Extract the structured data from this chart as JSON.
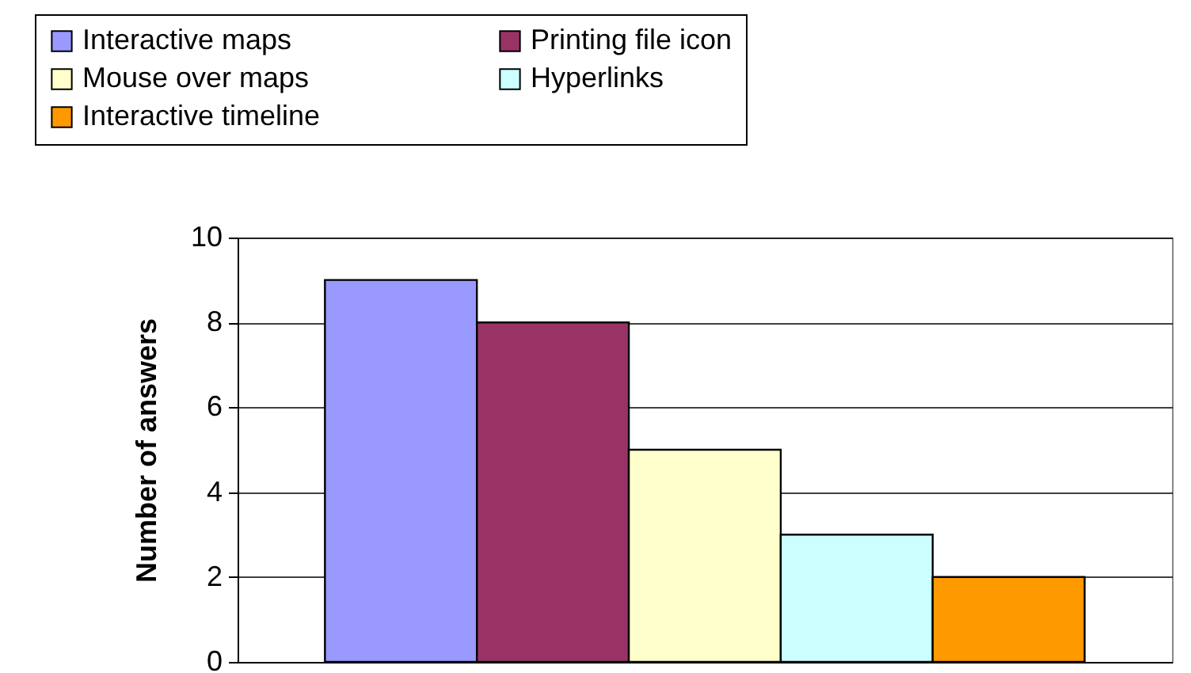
{
  "chart_data": {
    "type": "bar",
    "ylabel": "Number of answers",
    "categories": [
      null
    ],
    "series": [
      {
        "name": "Interactive maps",
        "color": "#9999ff",
        "values": [
          9
        ]
      },
      {
        "name": "Printing file icon",
        "color": "#993366",
        "values": [
          8
        ]
      },
      {
        "name": "Mouse over maps",
        "color": "#ffffcc",
        "values": [
          5
        ]
      },
      {
        "name": "Hyperlinks",
        "color": "#ccffff",
        "values": [
          3
        ]
      },
      {
        "name": "Interactive timeline",
        "color": "#ff9900",
        "values": [
          2
        ]
      }
    ],
    "ylim": [
      0,
      10
    ],
    "yticks": [
      0,
      2,
      4,
      6,
      8,
      10
    ],
    "grid": "y",
    "legend": "top"
  }
}
